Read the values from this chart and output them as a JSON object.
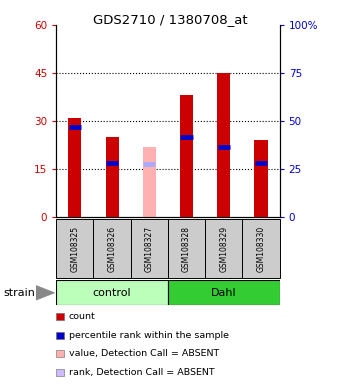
{
  "title": "GDS2710 / 1380708_at",
  "samples": [
    "GSM108325",
    "GSM108326",
    "GSM108327",
    "GSM108328",
    "GSM108329",
    "GSM108330"
  ],
  "count_values": [
    31,
    25,
    0,
    38,
    45,
    24
  ],
  "rank_values": [
    28,
    17,
    0,
    25,
    22,
    17
  ],
  "absent_count": [
    0,
    0,
    22,
    0,
    0,
    0
  ],
  "absent_rank": [
    0,
    0,
    16.5,
    0,
    0,
    0
  ],
  "ylim_left": [
    0,
    60
  ],
  "ylim_right": [
    0,
    100
  ],
  "yticks_left": [
    0,
    15,
    30,
    45,
    60
  ],
  "yticks_right": [
    0,
    25,
    50,
    75,
    100
  ],
  "yticklabels_left": [
    "0",
    "15",
    "30",
    "45",
    "60"
  ],
  "yticklabels_right": [
    "0",
    "25",
    "50",
    "75",
    "100%"
  ],
  "left_color": "#cc0000",
  "right_color": "#0000cc",
  "bar_color_red": "#cc0000",
  "bar_color_pink": "#ffb0b0",
  "rank_color_blue": "#0000cc",
  "rank_color_lightblue": "#aaaaff",
  "control_bg": "#bbffbb",
  "dahl_bg": "#33cc33",
  "sample_bg": "#cccccc",
  "bar_width": 0.35,
  "legend_items": [
    {
      "color": "#cc0000",
      "label": "count"
    },
    {
      "color": "#0000cc",
      "label": "percentile rank within the sample"
    },
    {
      "color": "#ffb0b0",
      "label": "value, Detection Call = ABSENT"
    },
    {
      "color": "#ccbbff",
      "label": "rank, Detection Call = ABSENT"
    }
  ]
}
